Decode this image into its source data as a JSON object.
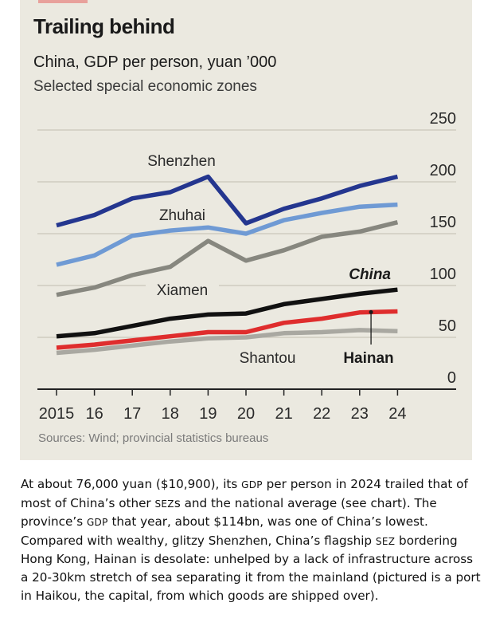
{
  "chart_data": {
    "type": "line",
    "title": "Trailing behind",
    "subtitle": "China, GDP per person, yuan ’000",
    "subsubtitle": "Selected special economic zones",
    "source": "Sources: Wind; provincial statistics bureaus",
    "x": [
      2015,
      2016,
      2017,
      2018,
      2019,
      2020,
      2021,
      2022,
      2023,
      2024
    ],
    "x_tick_labels": [
      "2015",
      "16",
      "17",
      "18",
      "19",
      "20",
      "21",
      "22",
      "23",
      "24"
    ],
    "y_ticks": [
      0,
      50,
      100,
      150,
      200,
      250
    ],
    "y_tick_labels": [
      "0",
      "50",
      "100",
      "150",
      "200",
      "250"
    ],
    "ylim": [
      0,
      250
    ],
    "yaxis_side": "right",
    "grid": true,
    "series": [
      {
        "name": "Shenzhen",
        "color": "#24368f",
        "label_style": "normal",
        "values": [
          158,
          168,
          184,
          190,
          205,
          160,
          174,
          184,
          196,
          205
        ]
      },
      {
        "name": "Zhuhai",
        "color": "#6f9ad4",
        "label_style": "normal",
        "values": [
          120,
          129,
          148,
          153,
          156,
          150,
          163,
          170,
          176,
          178
        ]
      },
      {
        "name": "Xiamen",
        "color": "#87877f",
        "label_style": "normal",
        "values": [
          91,
          98,
          110,
          118,
          143,
          124,
          134,
          147,
          152,
          161
        ]
      },
      {
        "name": "China",
        "color": "#111111",
        "label_style": "bold-italic",
        "values": [
          51,
          54,
          61,
          68,
          72,
          73,
          82,
          87,
          92,
          96
        ]
      },
      {
        "name": "Hainan",
        "color": "#df2d2d",
        "label_style": "bold",
        "values": [
          40,
          43,
          47,
          51,
          55,
          55,
          64,
          68,
          74,
          75
        ]
      },
      {
        "name": "Shantou",
        "color": "#a9a8a1",
        "label_style": "normal",
        "values": [
          35,
          38,
          42,
          46,
          49,
          50,
          54,
          55,
          57,
          56
        ]
      }
    ],
    "annotations": [
      {
        "text": "Hainan",
        "points_to": "Hainan",
        "x": 2023.3
      }
    ]
  },
  "article": {
    "segments": [
      {
        "t": "At about 76,000 yuan ($10,900), its "
      },
      {
        "t": "GDP",
        "sc": true
      },
      {
        "t": " per person in 2024 trailed that of most of China’s other "
      },
      {
        "t": "SEZ",
        "sc": true
      },
      {
        "t": "s and the national average (see chart). The province’s "
      },
      {
        "t": "GDP",
        "sc": true
      },
      {
        "t": " that year, about $114bn, was one of China’s lowest. Compared with wealthy, glitzy Shenzhen, China’s flagship "
      },
      {
        "t": "SEZ",
        "sc": true
      },
      {
        "t": " bordering Hong Kong, Hainan is desolate: unhelped by a lack of infrastructure across a 20-30km stretch of sea separating it from the mainland (pictured is a port in Haikou, the capital, from which goods are shipped over)."
      }
    ]
  }
}
